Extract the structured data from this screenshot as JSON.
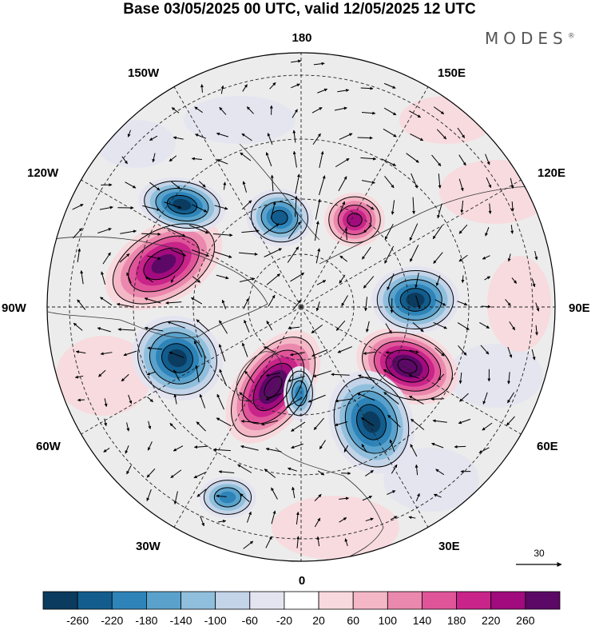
{
  "title": "Base 03/05/2025 00 UTC, valid 12/05/2025 12 UTC",
  "brand": {
    "name": "MODES",
    "mark": "®"
  },
  "map": {
    "projection": "north polar stereographic",
    "longitude_labels": {
      "top": "180",
      "bottom": "0",
      "left": "90W",
      "right": "90E",
      "upper_left_1": "150W",
      "upper_left_2": "120W",
      "lower_left_1": "60W",
      "lower_left_2": "30W",
      "upper_right_1": "150E",
      "upper_right_2": "120E",
      "lower_right_1": "60E",
      "lower_right_2": "30E"
    },
    "anomaly_centers": [
      {
        "sign": "positive",
        "region": "northern Canada",
        "level": 220
      },
      {
        "sign": "positive",
        "region": "North Atlantic / Greenland",
        "level": 260
      },
      {
        "sign": "positive",
        "region": "Siberia",
        "level": 260
      },
      {
        "sign": "positive",
        "region": "East Siberian Sea",
        "level": 180
      },
      {
        "sign": "negative",
        "region": "Alaska / Bering",
        "level": -220
      },
      {
        "sign": "negative",
        "region": "Labrador Sea",
        "level": -220
      },
      {
        "sign": "negative",
        "region": "Scandinavia / Barents",
        "level": -220
      },
      {
        "sign": "negative",
        "region": "Central Siberia",
        "level": -220
      },
      {
        "sign": "negative",
        "region": "Chukchi Sea",
        "level": -180
      },
      {
        "sign": "negative",
        "region": "North Atlantic (west of Europe)",
        "level": -140
      },
      {
        "sign": "negative",
        "region": "Greenland Sea",
        "level": -140
      }
    ]
  },
  "wind_reference": {
    "label": "30"
  },
  "colorbar": {
    "ticks": [
      "-260",
      "-220",
      "-180",
      "-140",
      "-100",
      "-60",
      "-20",
      "20",
      "60",
      "100",
      "140",
      "180",
      "220",
      "260"
    ],
    "colors": [
      "#0b3b5e",
      "#125d8d",
      "#2e84b8",
      "#5aa2cc",
      "#8fbfdc",
      "#c3d3e8",
      "#e4e4f1",
      "#ffffff",
      "#f8d9dd",
      "#f4b7c6",
      "#eb88ad",
      "#e0559a",
      "#c82489",
      "#a10b7e",
      "#5c0866"
    ]
  }
}
